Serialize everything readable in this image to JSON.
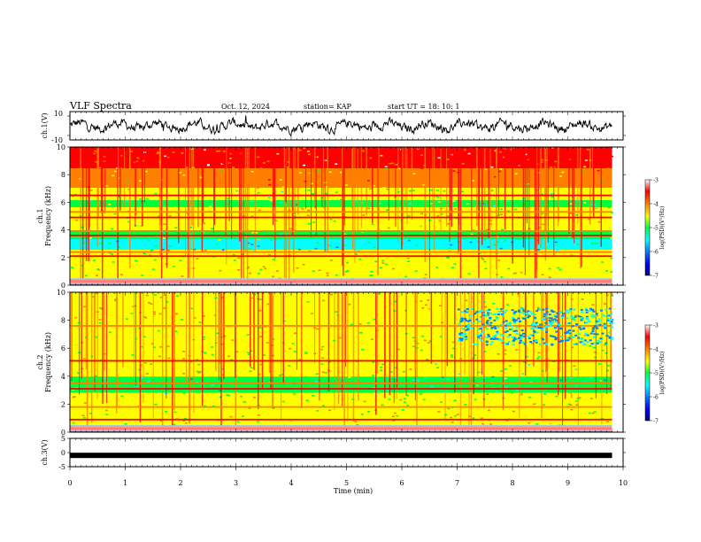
{
  "header": {
    "title": "VLF Spectra",
    "date": "Oct. 12, 2024",
    "station": "station= KAP",
    "start": "start  UT =   18: 10: 1"
  },
  "colors": {
    "spectrogram_scale": [
      "#00007f",
      "#0000ff",
      "#0080ff",
      "#00ffff",
      "#00ff40",
      "#ffff00",
      "#ff8000",
      "#ff0000",
      "#ffffff"
    ],
    "trace": "#000000"
  },
  "chart_data": [
    {
      "type": "line",
      "panel": "ch1-waveform",
      "ylabel": "ch.1(V)",
      "ylim": [
        -10,
        10
      ],
      "yticks": [
        "10",
        "-10"
      ],
      "xlim": [
        0,
        10
      ],
      "series": [
        {
          "description_values": "noisy waveform roughly -5 to 5 V",
          "x_start": 0,
          "x_end": 9.8
        }
      ]
    },
    {
      "type": "heatmap",
      "panel": "ch1-spectrogram",
      "ylabel": "ch.1\nFrequency (kHz)",
      "ylim": [
        0,
        10
      ],
      "yticks": [
        "0",
        "2",
        "4",
        "6",
        "8",
        "10"
      ],
      "xlim": [
        0,
        10
      ],
      "colorbar": {
        "label": "log(PSD)(V²/Hz)",
        "range": [
          -7,
          -3
        ],
        "ticks": [
          "-3",
          "-4",
          "-5",
          "-6",
          "-7"
        ]
      },
      "bands_khz": [
        0.3,
        2.1,
        2.4,
        3.6,
        3.9,
        4.9,
        5.3,
        6.5
      ]
    },
    {
      "type": "heatmap",
      "panel": "ch2-spectrogram",
      "ylabel": "ch.2\nFrequency (kHz)",
      "ylim": [
        0,
        10
      ],
      "yticks": [
        "0",
        "2",
        "4",
        "6",
        "8",
        "10"
      ],
      "xlim": [
        0,
        10
      ],
      "colorbar": {
        "label": "log(PSD)(V²/Hz)",
        "range": [
          -7,
          -3
        ],
        "ticks": [
          "-3",
          "-4",
          "-5",
          "-6",
          "-7"
        ]
      },
      "bands_khz": [
        0.3,
        0.9,
        1.8,
        3.1,
        3.5,
        5.1,
        7.6
      ]
    },
    {
      "type": "line",
      "panel": "ch3-waveform",
      "ylabel": "ch.3(V)",
      "ylim": [
        -5,
        5
      ],
      "yticks": [
        "5",
        "0",
        "-5"
      ],
      "xlim": [
        0,
        10
      ],
      "series": [
        {
          "constant_value": -1,
          "x_start": 0,
          "x_end": 9.8
        }
      ]
    }
  ],
  "xaxis": {
    "label": "Time  (min)",
    "ticks": [
      "0",
      "1",
      "2",
      "3",
      "4",
      "5",
      "6",
      "7",
      "8",
      "9",
      "10"
    ]
  }
}
